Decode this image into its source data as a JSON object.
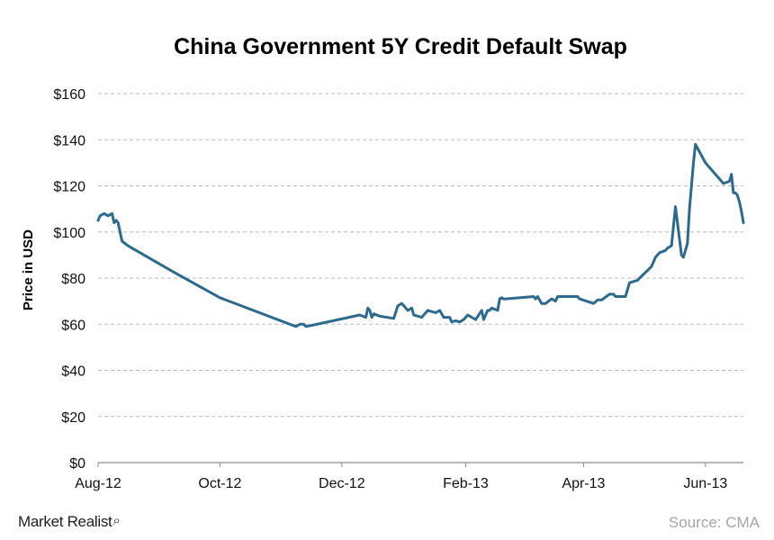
{
  "chart_data": {
    "type": "line",
    "title": "China Government 5Y Credit Default Swap",
    "xlabel": "",
    "ylabel": "Price in USD",
    "ylim": [
      0,
      160
    ],
    "yticks": [
      0,
      20,
      40,
      60,
      80,
      100,
      120,
      140,
      160
    ],
    "yticklabels": [
      "$0",
      "$20",
      "$40",
      "$60",
      "$80",
      "$100",
      "$120",
      "$140",
      "$160"
    ],
    "xlim": [
      "2012-08-01",
      "2013-06-20"
    ],
    "xticks": [
      "2012-08-01",
      "2012-10-01",
      "2012-12-01",
      "2013-02-01",
      "2013-04-01",
      "2013-06-01"
    ],
    "xticklabels": [
      "Aug-12",
      "Oct-12",
      "Dec-12",
      "Feb-13",
      "Apr-13",
      "Jun-13"
    ],
    "grid": "horizontal dashed",
    "line_color": "#2e6a8e",
    "series": [
      {
        "x": [
          "2012-08-01",
          "2012-08-02",
          "2012-08-04",
          "2012-08-06",
          "2012-08-08",
          "2012-08-09",
          "2012-08-10",
          "2012-08-11",
          "2012-08-13",
          "2012-08-16",
          "2012-08-18",
          "2012-09-08",
          "2012-10-01",
          "2012-11-08",
          "2012-11-10",
          "2012-11-12",
          "2012-11-13",
          "2012-11-16",
          "2012-12-10",
          "2012-12-13",
          "2012-12-14",
          "2012-12-15",
          "2012-12-16",
          "2012-12-17",
          "2012-12-20",
          "2012-12-27",
          "2012-12-29",
          "2012-12-30",
          "2012-12-31",
          "2013-01-03",
          "2013-01-05",
          "2013-01-06",
          "2013-01-08",
          "2013-01-10",
          "2013-01-13",
          "2013-01-17",
          "2013-01-19",
          "2013-01-21",
          "2013-01-24",
          "2013-01-25",
          "2013-01-27",
          "2013-01-29",
          "2013-01-31",
          "2013-02-01",
          "2013-02-02",
          "2013-02-06",
          "2013-02-09",
          "2013-02-10",
          "2013-02-12",
          "2013-02-13",
          "2013-02-14",
          "2013-02-17",
          "2013-02-18",
          "2013-02-19",
          "2013-02-20",
          "2013-02-21",
          "2013-03-07",
          "2013-03-08",
          "2013-03-09",
          "2013-03-11",
          "2013-03-13",
          "2013-03-16",
          "2013-03-18",
          "2013-03-19",
          "2013-03-29",
          "2013-03-30",
          "2013-04-06",
          "2013-04-08",
          "2013-04-10",
          "2013-04-14",
          "2013-04-16",
          "2013-04-17",
          "2013-04-18",
          "2013-04-20",
          "2013-04-22",
          "2013-04-24",
          "2013-04-28",
          "2013-04-29",
          "2013-05-05",
          "2013-05-07",
          "2013-05-09",
          "2013-05-12",
          "2013-05-13",
          "2013-05-15",
          "2013-05-17",
          "2013-05-20",
          "2013-05-21",
          "2013-05-23",
          "2013-05-24",
          "2013-05-26",
          "2013-05-27",
          "2013-06-01",
          "2013-06-10",
          "2013-06-13",
          "2013-06-14",
          "2013-06-15",
          "2013-06-16",
          "2013-06-17",
          "2013-06-18",
          "2013-06-19",
          "2013-06-20"
        ],
        "values": [
          105,
          107,
          108,
          107,
          108,
          104,
          105,
          104,
          96,
          94,
          93,
          82.5,
          71.5,
          59,
          60,
          60,
          59,
          59.5,
          64,
          63,
          67,
          66,
          63,
          64.5,
          63.5,
          62.5,
          68,
          68.5,
          69,
          66,
          67,
          64,
          63.5,
          63,
          66,
          65,
          66,
          63,
          63,
          61,
          61.5,
          61,
          62,
          63,
          64,
          62,
          66,
          62,
          66,
          66,
          67,
          66,
          71,
          71.5,
          71,
          71,
          72,
          71,
          72,
          69,
          69,
          71,
          70,
          72,
          72,
          71,
          69,
          70.5,
          70.5,
          73,
          73,
          72,
          72,
          72,
          72,
          78,
          79,
          80,
          85,
          89,
          91,
          92,
          93,
          94,
          111,
          90,
          89,
          95,
          110,
          130,
          138,
          130,
          121,
          122,
          125,
          117,
          117,
          116,
          113,
          109,
          104
        ]
      }
    ]
  },
  "branding": {
    "logo_text": "Market Realist",
    "logo_glyph": "⌕"
  },
  "footer": {
    "source": "Source: CMA"
  }
}
